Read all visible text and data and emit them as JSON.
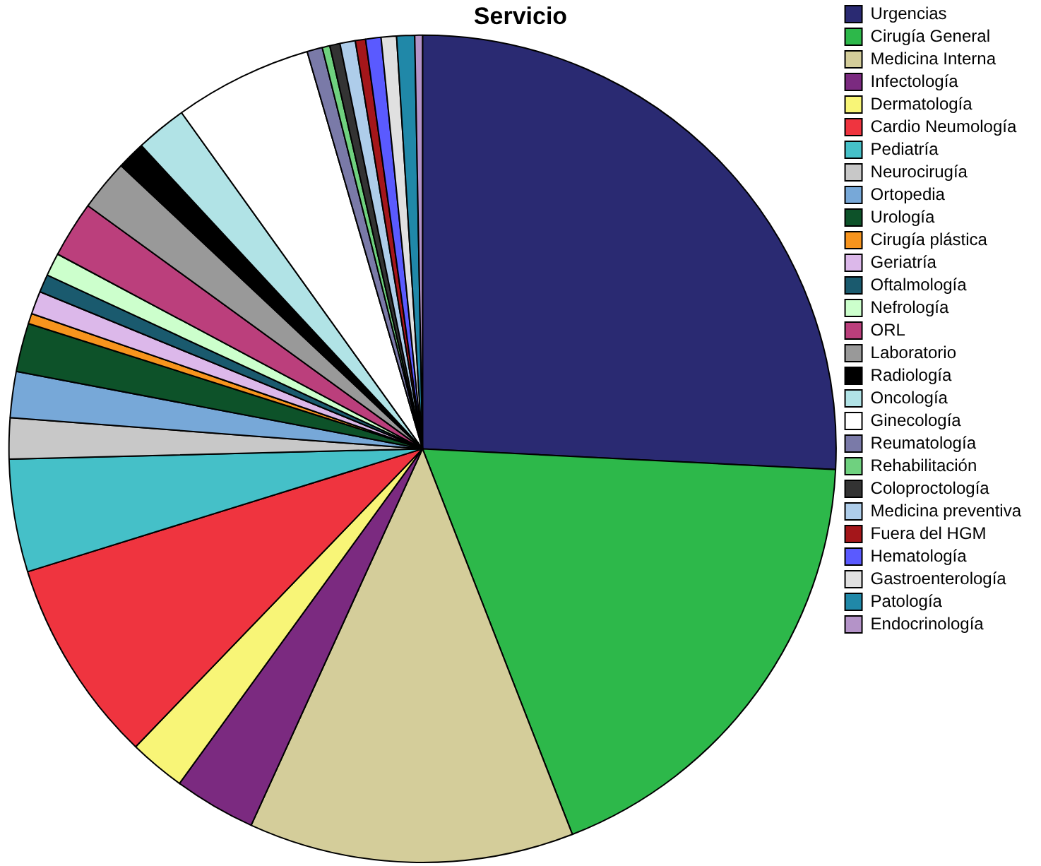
{
  "chart_data": {
    "type": "pie",
    "title": "Servicio",
    "legend": "top right",
    "categories": [
      "Urgencias",
      "Cirugía General",
      "Medicina Interna",
      "Infectología",
      "Dermatología",
      "Cardio Neumología",
      "Pediatría",
      "Neurocirugía",
      "Ortopedia",
      "Urología",
      "Cirugía plástica",
      "Geriatría",
      "Oftalmología",
      "Nefrología",
      "ORL",
      "Laboratorio",
      "Radiología",
      "Oncología",
      "Ginecología",
      "Reumatología",
      "Rehabilitación",
      "Coloproctología",
      "Medicina preventiva",
      "Fuera del HGM",
      "Hematología",
      "Gastroenterología",
      "Patología",
      "Endocrinología"
    ],
    "values": [
      25.8,
      18.3,
      12.7,
      3.2,
      2.2,
      8.0,
      4.4,
      1.6,
      1.8,
      1.9,
      0.4,
      0.9,
      0.7,
      0.9,
      2.2,
      2.0,
      1.1,
      2.0,
      5.4,
      0.6,
      0.3,
      0.4,
      0.6,
      0.4,
      0.6,
      0.6,
      0.7,
      0.3
    ],
    "colors": [
      "#2a2a72",
      "#2db84a",
      "#d4cd9a",
      "#7b2a80",
      "#f8f577",
      "#ef343f",
      "#45c0c8",
      "#c8c8c8",
      "#77a8d8",
      "#0d5229",
      "#f7941d",
      "#dcb8ea",
      "#1a5a6e",
      "#ccffcc",
      "#bb3f7c",
      "#999999",
      "#000000",
      "#b1e3e6",
      "#ffffff",
      "#7a7aa8",
      "#6fd17f",
      "#333333",
      "#aecdea",
      "#a4161a",
      "#5a5aff",
      "#e0e0e0",
      "#2088a8",
      "#b493c8"
    ]
  }
}
